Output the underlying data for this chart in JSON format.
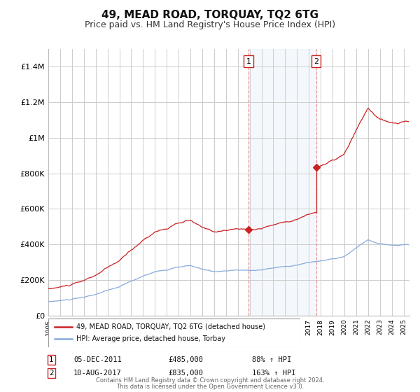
{
  "title": "49, MEAD ROAD, TORQUAY, TQ2 6TG",
  "subtitle": "Price paid vs. HM Land Registry's House Price Index (HPI)",
  "title_fontsize": 11,
  "subtitle_fontsize": 9,
  "background_color": "#ffffff",
  "plot_bg_color": "#ffffff",
  "grid_color": "#cccccc",
  "ylim": [
    0,
    1500000
  ],
  "yticks": [
    0,
    200000,
    400000,
    600000,
    800000,
    1000000,
    1200000,
    1400000
  ],
  "ytick_labels": [
    "£0",
    "£200K",
    "£400K",
    "£600K",
    "£800K",
    "£1M",
    "£1.2M",
    "£1.4M"
  ],
  "sale1_date_num": 2011.92,
  "sale1_price": 485000,
  "sale1_label": "1",
  "sale1_date_str": "05-DEC-2011",
  "sale1_pct": "88%",
  "sale2_date_num": 2017.61,
  "sale2_price": 835000,
  "sale2_label": "2",
  "sale2_date_str": "10-AUG-2017",
  "sale2_pct": "163%",
  "shade_color": "#dce9f7",
  "dashed_color": "#ee9999",
  "hpi_color": "#88aadd",
  "price_color": "#cc2222",
  "legend_line1": "49, MEAD ROAD, TORQUAY, TQ2 6TG (detached house)",
  "legend_line2": "HPI: Average price, detached house, Torbay",
  "footer1": "Contains HM Land Registry data © Crown copyright and database right 2024.",
  "footer2": "This data is licensed under the Open Government Licence v3.0.",
  "xmin": 1995,
  "xmax": 2025.5
}
